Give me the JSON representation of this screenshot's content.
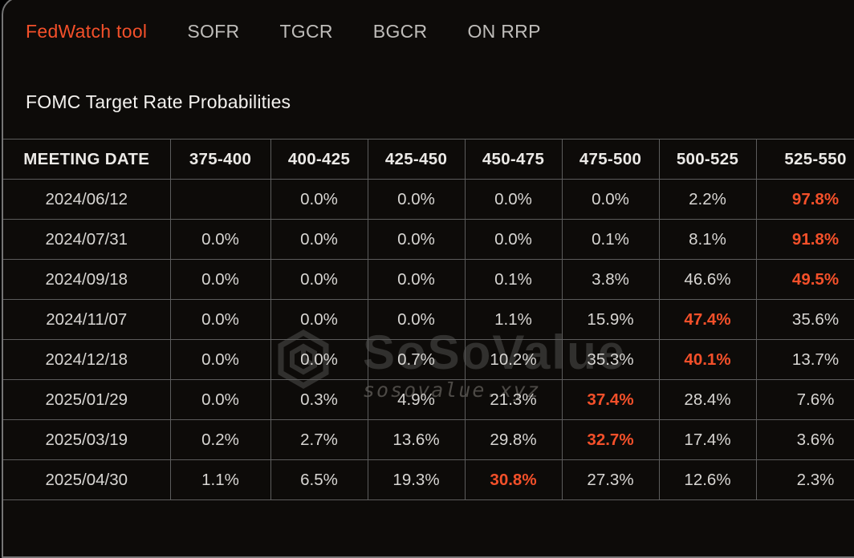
{
  "tabs": [
    {
      "label": "FedWatch tool",
      "active": true
    },
    {
      "label": "SOFR",
      "active": false
    },
    {
      "label": "TGCR",
      "active": false
    },
    {
      "label": "BGCR",
      "active": false
    },
    {
      "label": "ON RRP",
      "active": false
    }
  ],
  "title": "FOMC Target Rate Probabilities",
  "table": {
    "columns": [
      "MEETING DATE",
      "375-400",
      "400-425",
      "425-450",
      "450-475",
      "475-500",
      "500-525",
      "525-550"
    ],
    "rows": [
      {
        "date": "2024/06/12",
        "values": [
          "",
          "0.0%",
          "0.0%",
          "0.0%",
          "0.0%",
          "2.2%",
          "97.8%"
        ],
        "highlight_index": 6
      },
      {
        "date": "2024/07/31",
        "values": [
          "0.0%",
          "0.0%",
          "0.0%",
          "0.0%",
          "0.1%",
          "8.1%",
          "91.8%"
        ],
        "highlight_index": 6
      },
      {
        "date": "2024/09/18",
        "values": [
          "0.0%",
          "0.0%",
          "0.0%",
          "0.1%",
          "3.8%",
          "46.6%",
          "49.5%"
        ],
        "highlight_index": 6
      },
      {
        "date": "2024/11/07",
        "values": [
          "0.0%",
          "0.0%",
          "0.0%",
          "1.1%",
          "15.9%",
          "47.4%",
          "35.6%"
        ],
        "highlight_index": 5
      },
      {
        "date": "2024/12/18",
        "values": [
          "0.0%",
          "0.0%",
          "0.7%",
          "10.2%",
          "35.3%",
          "40.1%",
          "13.7%"
        ],
        "highlight_index": 5
      },
      {
        "date": "2025/01/29",
        "values": [
          "0.0%",
          "0.3%",
          "4.9%",
          "21.3%",
          "37.4%",
          "28.4%",
          "7.6%"
        ],
        "highlight_index": 4
      },
      {
        "date": "2025/03/19",
        "values": [
          "0.2%",
          "2.7%",
          "13.6%",
          "29.8%",
          "32.7%",
          "17.4%",
          "3.6%"
        ],
        "highlight_index": 4
      },
      {
        "date": "2025/04/30",
        "values": [
          "1.1%",
          "6.5%",
          "19.3%",
          "30.8%",
          "27.3%",
          "12.6%",
          "2.3%"
        ],
        "highlight_index": 3
      }
    ]
  },
  "watermark": {
    "brand": "SoSoValue",
    "domain": "sosovalue.xyz"
  },
  "colors": {
    "accent": "#f4502a",
    "background": "#0d0b09",
    "grid_border": "#5c5c5c",
    "panel_border": "#757575",
    "text": "#d8d6d3"
  }
}
